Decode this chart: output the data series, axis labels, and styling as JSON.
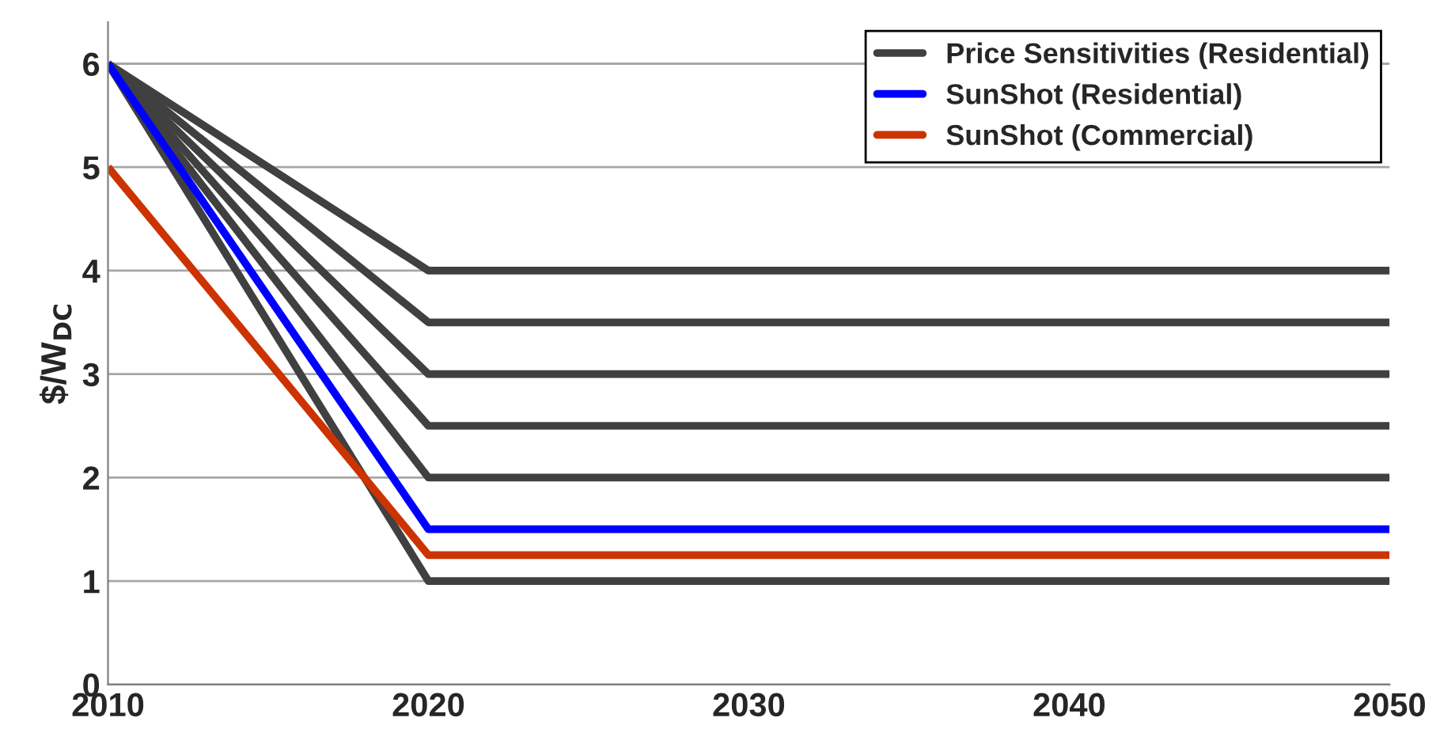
{
  "chart_data": {
    "type": "line",
    "ylabel": "$/W$_{DC}$",
    "x": [
      2010,
      2020,
      2050
    ],
    "series": [
      {
        "name": "Price Sensitivities (Residential)",
        "color": "#404040",
        "values": [
          6,
          4,
          4
        ]
      },
      {
        "color": "#404040",
        "values": [
          6,
          3.5,
          3.5
        ]
      },
      {
        "color": "#404040",
        "values": [
          6,
          3,
          3
        ]
      },
      {
        "color": "#404040",
        "values": [
          6,
          2.5,
          2.5
        ]
      },
      {
        "color": "#404040",
        "values": [
          6,
          2,
          2
        ]
      },
      {
        "color": "#404040",
        "values": [
          6,
          1,
          1
        ]
      },
      {
        "name": "SunShot (Residential)",
        "color": "#0000ff",
        "values": [
          6,
          1.5,
          1.5
        ]
      },
      {
        "name": "SunShot (Commercial)",
        "color": "#cc3300",
        "values": [
          5,
          1.25,
          1.25
        ]
      }
    ],
    "xlim": [
      2010,
      2050
    ],
    "xticks": [
      2010,
      2020,
      2030,
      2040,
      2050
    ],
    "ylim": [
      0,
      6.4
    ],
    "yticks": [
      0,
      1,
      2,
      3,
      4,
      5,
      6
    ],
    "grid": "y",
    "legend": "top right",
    "marker": "none",
    "line_style": "solid"
  }
}
